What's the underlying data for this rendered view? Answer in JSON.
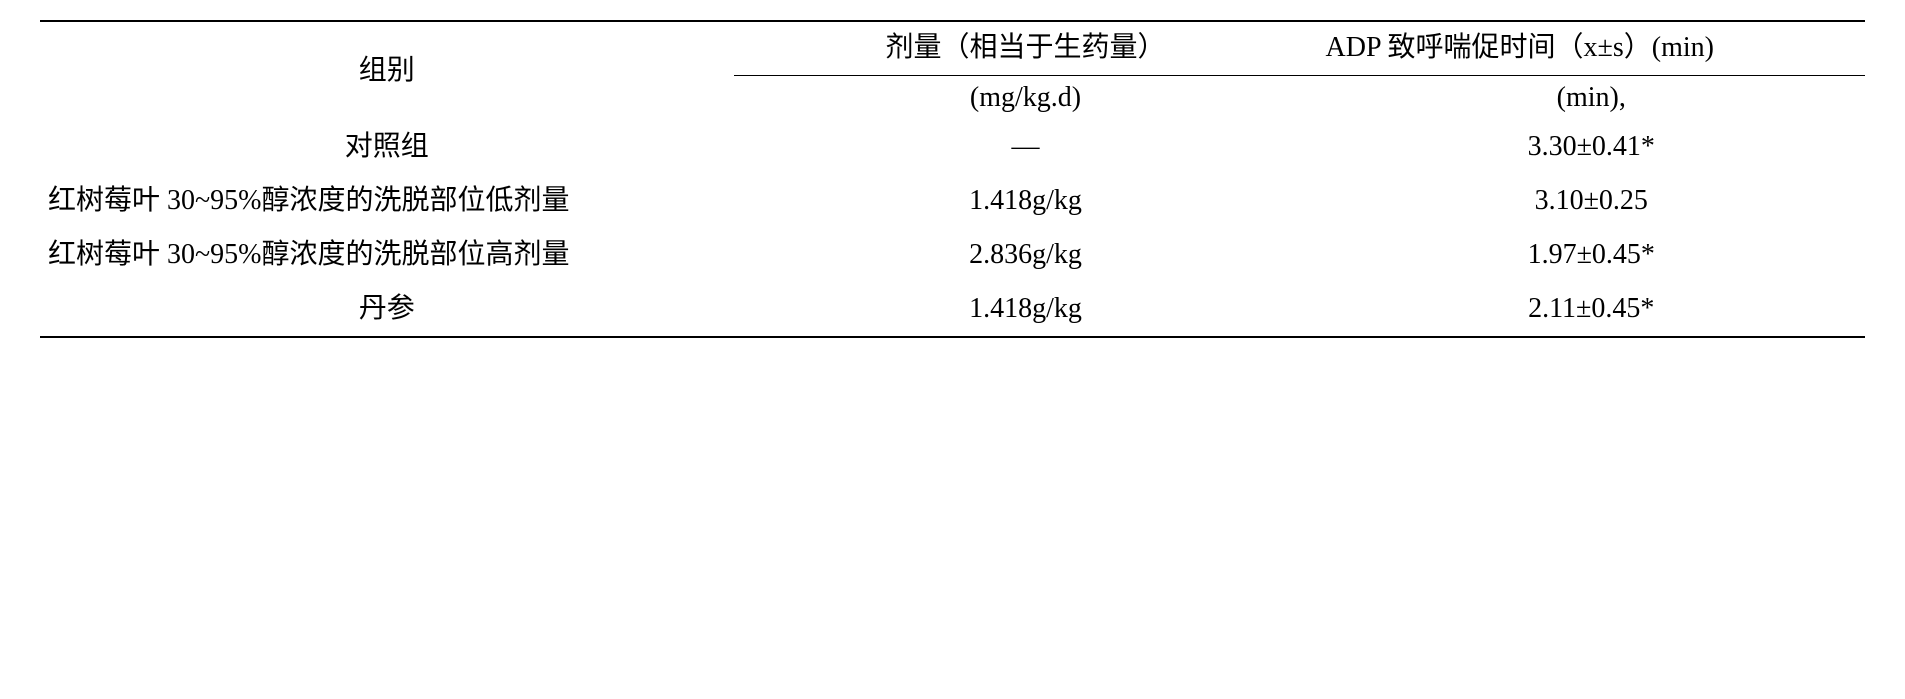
{
  "table": {
    "font_size_pt": 28,
    "line_height": 1.45,
    "colors": {
      "text": "#000000",
      "background": "#ffffff",
      "rule": "#000000"
    },
    "col_widths_pct": [
      38,
      32,
      30
    ],
    "header": {
      "group": "组别",
      "dose": "剂量（相当于生药量）",
      "adp": "ADP 致呼喘促时间（x±s）(min)"
    },
    "units": {
      "dose": "(mg/kg.d)",
      "adp": "(min),"
    },
    "rows": [
      {
        "group": "对照组",
        "group_align": "center",
        "dose": "—",
        "adp": "3.30±0.41*"
      },
      {
        "group": "红树莓叶 30~95%醇浓度的洗脱部位低剂量",
        "group_align": "left",
        "dose": "1.418g/kg",
        "adp": "3.10±0.25"
      },
      {
        "group": "红树莓叶 30~95%醇浓度的洗脱部位高剂量",
        "group_align": "left",
        "dose": "2.836g/kg",
        "adp": "1.97±0.45*"
      },
      {
        "group": "丹参",
        "group_align": "center",
        "dose": "1.418g/kg",
        "adp": "2.11±0.45*"
      }
    ]
  }
}
